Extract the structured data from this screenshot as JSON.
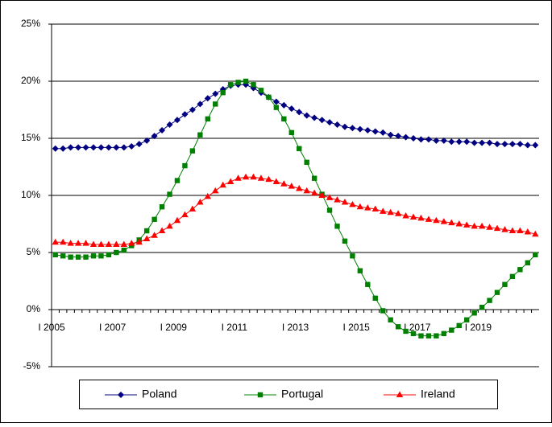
{
  "chart_data": {
    "type": "line",
    "categories": [
      "I 2005",
      null,
      null,
      null,
      null,
      null,
      null,
      null,
      "I 2007",
      null,
      null,
      null,
      null,
      null,
      null,
      null,
      "I 2009",
      null,
      null,
      null,
      null,
      null,
      null,
      null,
      "I 2011",
      null,
      null,
      null,
      null,
      null,
      null,
      null,
      "I 2013",
      null,
      null,
      null,
      null,
      null,
      null,
      null,
      "I 2015",
      null,
      null,
      null,
      null,
      null,
      null,
      null,
      "I 2017",
      null,
      null,
      null,
      null,
      null,
      null,
      null,
      "I 2019",
      null,
      null,
      null,
      null,
      null,
      null,
      null
    ],
    "series": [
      {
        "name": "Poland",
        "color": "#000080",
        "marker": "diamond",
        "values": [
          14.1,
          14.1,
          14.2,
          14.2,
          14.2,
          14.2,
          14.2,
          14.2,
          14.2,
          14.2,
          14.3,
          14.5,
          14.8,
          15.2,
          15.7,
          16.2,
          16.6,
          17.1,
          17.5,
          18.0,
          18.5,
          18.9,
          19.3,
          19.6,
          19.7,
          19.7,
          19.4,
          19.0,
          18.6,
          18.2,
          17.9,
          17.6,
          17.3,
          17.0,
          16.8,
          16.6,
          16.4,
          16.2,
          16.0,
          15.9,
          15.8,
          15.7,
          15.6,
          15.5,
          15.3,
          15.2,
          15.1,
          15.0,
          14.9,
          14.9,
          14.8,
          14.8,
          14.7,
          14.7,
          14.7,
          14.6,
          14.6,
          14.6,
          14.5,
          14.5,
          14.5,
          14.5,
          14.4,
          14.4
        ]
      },
      {
        "name": "Portugal",
        "color": "#008000",
        "marker": "square",
        "values": [
          4.8,
          4.7,
          4.6,
          4.6,
          4.6,
          4.7,
          4.7,
          4.8,
          5.0,
          5.2,
          5.6,
          6.1,
          6.9,
          7.9,
          9.0,
          10.1,
          11.3,
          12.6,
          13.9,
          15.3,
          16.7,
          18.0,
          19.0,
          19.7,
          19.9,
          20.0,
          19.7,
          19.2,
          18.6,
          17.7,
          16.7,
          15.5,
          14.1,
          12.9,
          11.5,
          10.1,
          8.7,
          7.3,
          6.0,
          4.7,
          3.4,
          2.2,
          1.0,
          -0.1,
          -0.9,
          -1.5,
          -1.9,
          -2.1,
          -2.3,
          -2.3,
          -2.3,
          -2.1,
          -1.8,
          -1.4,
          -0.9,
          -0.3,
          0.2,
          0.8,
          1.5,
          2.2,
          2.9,
          3.5,
          4.1,
          4.8
        ]
      },
      {
        "name": "Ireland",
        "color": "#ff0000",
        "marker": "triangle",
        "values": [
          5.9,
          5.9,
          5.8,
          5.8,
          5.8,
          5.7,
          5.7,
          5.7,
          5.7,
          5.7,
          5.8,
          5.9,
          6.2,
          6.5,
          6.9,
          7.3,
          7.8,
          8.3,
          8.8,
          9.4,
          9.9,
          10.4,
          10.9,
          11.2,
          11.5,
          11.6,
          11.6,
          11.5,
          11.4,
          11.2,
          11.0,
          10.8,
          10.6,
          10.4,
          10.2,
          10.0,
          9.8,
          9.6,
          9.4,
          9.2,
          9.0,
          8.9,
          8.8,
          8.6,
          8.5,
          8.4,
          8.2,
          8.1,
          8.0,
          7.9,
          7.8,
          7.7,
          7.6,
          7.5,
          7.4,
          7.3,
          7.3,
          7.2,
          7.1,
          7.0,
          6.9,
          6.9,
          6.8,
          6.6
        ]
      }
    ],
    "ylim": [
      -5,
      25
    ],
    "yticks": [
      {
        "value": -5,
        "label": "-5%"
      },
      {
        "value": 0,
        "label": "0%"
      },
      {
        "value": 5,
        "label": "5%"
      },
      {
        "value": 10,
        "label": "10%"
      },
      {
        "value": 15,
        "label": "15%"
      },
      {
        "value": 20,
        "label": "20%"
      },
      {
        "value": 25,
        "label": "25%"
      }
    ],
    "grid": true,
    "legend": "bottom"
  }
}
